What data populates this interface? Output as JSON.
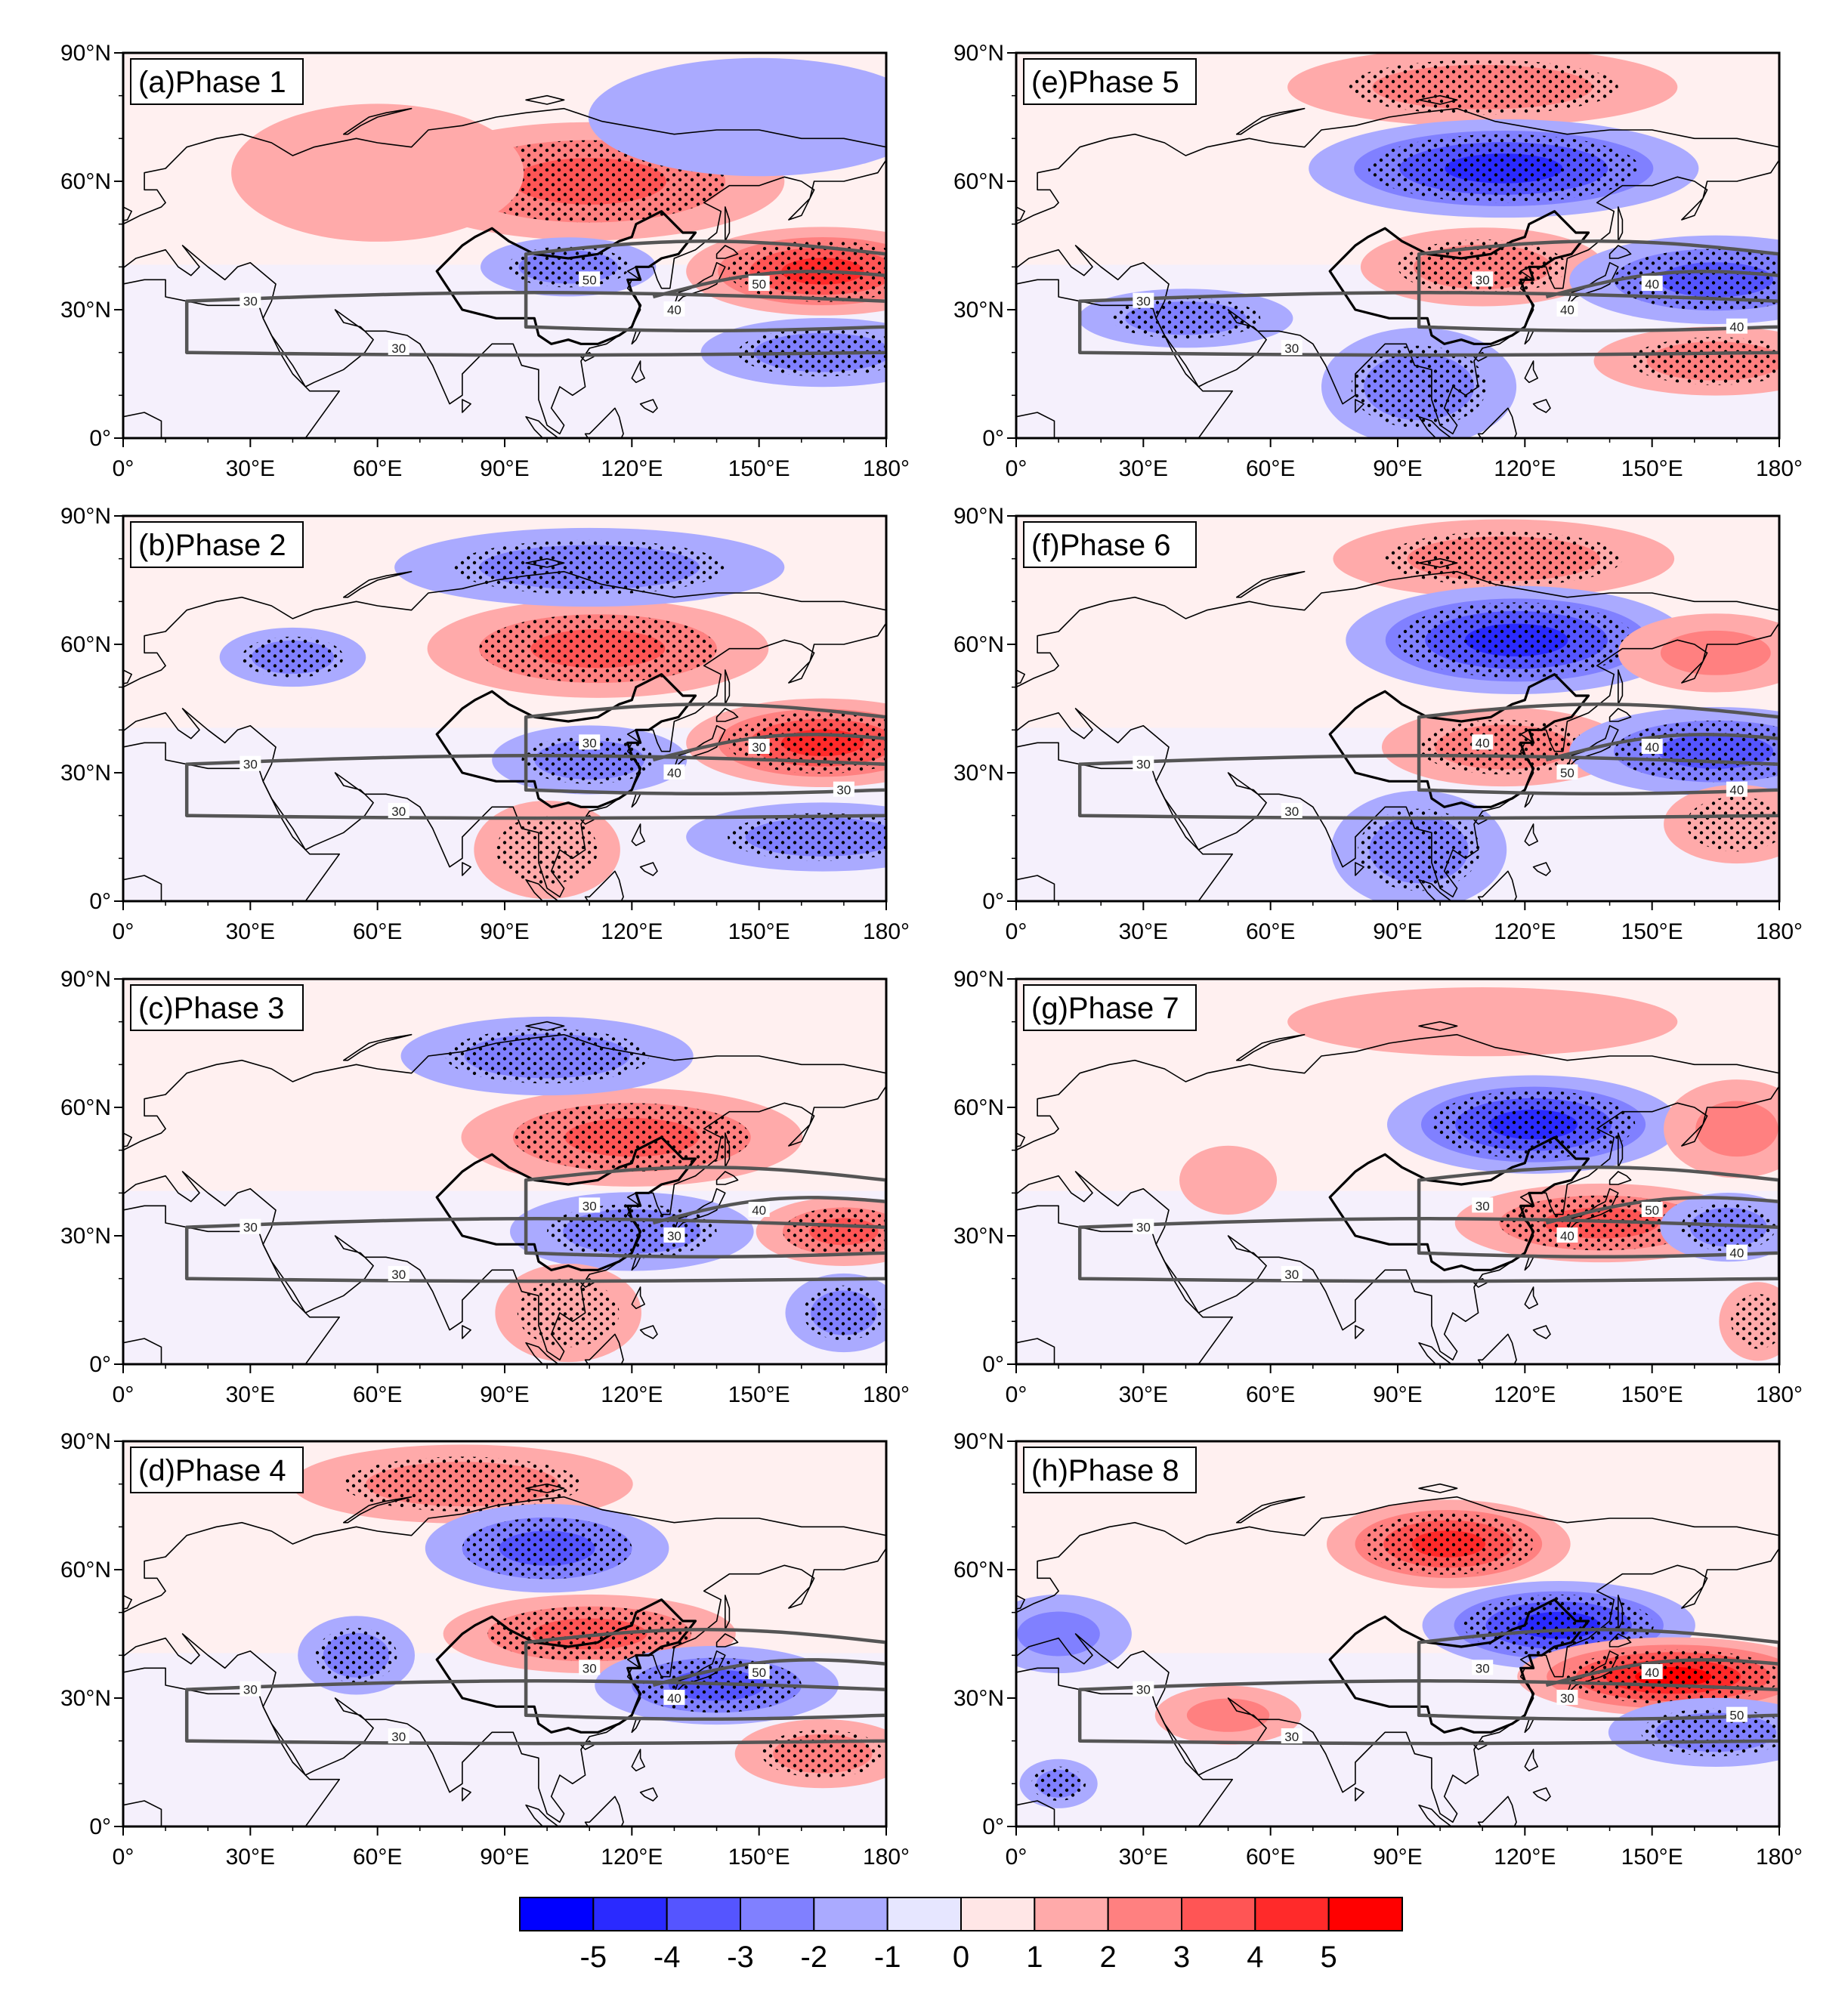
{
  "figure": {
    "x_axis": {
      "ticks": [
        "0°",
        "30°E",
        "60°E",
        "90°E",
        "120°E",
        "150°E",
        "180°"
      ]
    },
    "y_axis": {
      "ticks": [
        "0°",
        "30°N",
        "60°N",
        "90°N"
      ]
    },
    "panels": [
      {
        "label": "(a)Phase 1",
        "jet_labels": [
          "30",
          "30",
          "50",
          "40",
          "50"
        ],
        "anomalies": [
          {
            "lon": 110,
            "lat": 60,
            "value": 3,
            "rx": 40,
            "ry": 12,
            "dots": true
          },
          {
            "lon": 165,
            "lat": 39,
            "value": 4,
            "rx": 28,
            "ry": 9,
            "dots": true
          },
          {
            "lon": 105,
            "lat": 40,
            "value": -2,
            "rx": 18,
            "ry": 6,
            "dots": true
          },
          {
            "lon": 165,
            "lat": 20,
            "value": -2,
            "rx": 25,
            "ry": 7,
            "dots": true
          },
          {
            "lon": 60,
            "lat": 62,
            "value": 1,
            "rx": 30,
            "ry": 14,
            "dots": false
          },
          {
            "lon": 150,
            "lat": 75,
            "value": -1,
            "rx": 35,
            "ry": 12,
            "dots": false
          }
        ]
      },
      {
        "label": "(e)Phase 5",
        "jet_labels": [
          "30",
          "30",
          "30",
          "40",
          "40",
          "40"
        ],
        "anomalies": [
          {
            "lon": 110,
            "lat": 82,
            "value": 2,
            "rx": 40,
            "ry": 8,
            "dots": true
          },
          {
            "lon": 115,
            "lat": 63,
            "value": -4,
            "rx": 40,
            "ry": 10,
            "dots": true
          },
          {
            "lon": 110,
            "lat": 40,
            "value": 2,
            "rx": 25,
            "ry": 8,
            "dots": true
          },
          {
            "lon": 165,
            "lat": 37,
            "value": -3,
            "rx": 30,
            "ry": 9,
            "dots": true
          },
          {
            "lon": 165,
            "lat": 18,
            "value": 2,
            "rx": 25,
            "ry": 7,
            "dots": true
          },
          {
            "lon": 95,
            "lat": 12,
            "value": -2,
            "rx": 20,
            "ry": 12,
            "dots": true
          },
          {
            "lon": 40,
            "lat": 28,
            "value": -2,
            "rx": 22,
            "ry": 6,
            "dots": true
          }
        ]
      },
      {
        "label": "(b)Phase 2",
        "jet_labels": [
          "30",
          "30",
          "30",
          "40",
          "30",
          "30"
        ],
        "anomalies": [
          {
            "lon": 112,
            "lat": 59,
            "value": 3,
            "rx": 35,
            "ry": 10,
            "dots": true
          },
          {
            "lon": 110,
            "lat": 78,
            "value": -2,
            "rx": 40,
            "ry": 8,
            "dots": true
          },
          {
            "lon": 165,
            "lat": 37,
            "value": 4,
            "rx": 28,
            "ry": 9,
            "dots": true
          },
          {
            "lon": 110,
            "lat": 33,
            "value": -2,
            "rx": 20,
            "ry": 7,
            "dots": true
          },
          {
            "lon": 165,
            "lat": 15,
            "value": -2,
            "rx": 28,
            "ry": 7,
            "dots": true
          },
          {
            "lon": 40,
            "lat": 57,
            "value": -2,
            "rx": 15,
            "ry": 6,
            "dots": true
          },
          {
            "lon": 100,
            "lat": 12,
            "value": 1,
            "rx": 15,
            "ry": 10,
            "dots": true
          }
        ]
      },
      {
        "label": "(f)Phase 6",
        "jet_labels": [
          "30",
          "30",
          "40",
          "50",
          "40",
          "40"
        ],
        "anomalies": [
          {
            "lon": 115,
            "lat": 80,
            "value": 2,
            "rx": 35,
            "ry": 8,
            "dots": true
          },
          {
            "lon": 118,
            "lat": 61,
            "value": -4,
            "rx": 35,
            "ry": 11,
            "dots": true
          },
          {
            "lon": 115,
            "lat": 36,
            "value": 2,
            "rx": 25,
            "ry": 8,
            "dots": true
          },
          {
            "lon": 165,
            "lat": 35,
            "value": -3,
            "rx": 30,
            "ry": 9,
            "dots": true
          },
          {
            "lon": 165,
            "lat": 58,
            "value": 2,
            "rx": 20,
            "ry": 8,
            "dots": false
          },
          {
            "lon": 95,
            "lat": 12,
            "value": -2,
            "rx": 18,
            "ry": 12,
            "dots": true
          },
          {
            "lon": 170,
            "lat": 18,
            "value": 1,
            "rx": 15,
            "ry": 8,
            "dots": true
          }
        ]
      },
      {
        "label": "(c)Phase 3",
        "jet_labels": [
          "30",
          "30",
          "30",
          "30",
          "40"
        ],
        "anomalies": [
          {
            "lon": 120,
            "lat": 53,
            "value": 3,
            "rx": 35,
            "ry": 10,
            "dots": true
          },
          {
            "lon": 100,
            "lat": 72,
            "value": -2,
            "rx": 30,
            "ry": 8,
            "dots": true
          },
          {
            "lon": 120,
            "lat": 31,
            "value": -2,
            "rx": 25,
            "ry": 8,
            "dots": true
          },
          {
            "lon": 170,
            "lat": 31,
            "value": 3,
            "rx": 18,
            "ry": 7,
            "dots": true
          },
          {
            "lon": 170,
            "lat": 12,
            "value": -2,
            "rx": 12,
            "ry": 8,
            "dots": true
          },
          {
            "lon": 105,
            "lat": 12,
            "value": 1,
            "rx": 15,
            "ry": 10,
            "dots": true
          }
        ]
      },
      {
        "label": "(g)Phase 7",
        "jet_labels": [
          "30",
          "30",
          "30",
          "40",
          "50",
          "40"
        ],
        "anomalies": [
          {
            "lon": 122,
            "lat": 56,
            "value": -4,
            "rx": 30,
            "ry": 10,
            "dots": true
          },
          {
            "lon": 138,
            "lat": 33,
            "value": 3,
            "rx": 30,
            "ry": 8,
            "dots": true
          },
          {
            "lon": 168,
            "lat": 32,
            "value": -2,
            "rx": 14,
            "ry": 7,
            "dots": true
          },
          {
            "lon": 170,
            "lat": 55,
            "value": 2,
            "rx": 15,
            "ry": 10,
            "dots": false
          },
          {
            "lon": 110,
            "lat": 80,
            "value": 1,
            "rx": 40,
            "ry": 7,
            "dots": false
          },
          {
            "lon": 50,
            "lat": 43,
            "value": 1,
            "rx": 10,
            "ry": 7,
            "dots": false
          },
          {
            "lon": 175,
            "lat": 10,
            "value": 1,
            "rx": 8,
            "ry": 8,
            "dots": true
          }
        ]
      },
      {
        "label": "(d)Phase 4",
        "jet_labels": [
          "30",
          "30",
          "30",
          "40",
          "50"
        ],
        "anomalies": [
          {
            "lon": 80,
            "lat": 80,
            "value": 2,
            "rx": 35,
            "ry": 8,
            "dots": true
          },
          {
            "lon": 100,
            "lat": 65,
            "value": -3,
            "rx": 25,
            "ry": 9,
            "dots": true
          },
          {
            "lon": 110,
            "lat": 45,
            "value": 3,
            "rx": 30,
            "ry": 8,
            "dots": true
          },
          {
            "lon": 140,
            "lat": 33,
            "value": -3,
            "rx": 25,
            "ry": 8,
            "dots": true
          },
          {
            "lon": 165,
            "lat": 17,
            "value": 2,
            "rx": 18,
            "ry": 7,
            "dots": true
          },
          {
            "lon": 55,
            "lat": 40,
            "value": -2,
            "rx": 12,
            "ry": 8,
            "dots": true
          }
        ]
      },
      {
        "label": "(h)Phase 8",
        "jet_labels": [
          "30",
          "30",
          "30",
          "30",
          "40",
          "50"
        ],
        "anomalies": [
          {
            "lon": 102,
            "lat": 66,
            "value": 4,
            "rx": 25,
            "ry": 9,
            "dots": true
          },
          {
            "lon": 128,
            "lat": 47,
            "value": -4,
            "rx": 28,
            "ry": 9,
            "dots": true
          },
          {
            "lon": 155,
            "lat": 35,
            "value": 5,
            "rx": 32,
            "ry": 8,
            "dots": true
          },
          {
            "lon": 165,
            "lat": 22,
            "value": -2,
            "rx": 22,
            "ry": 7,
            "dots": true
          },
          {
            "lon": 10,
            "lat": 45,
            "value": -2,
            "rx": 15,
            "ry": 8,
            "dots": false
          },
          {
            "lon": 50,
            "lat": 26,
            "value": 2,
            "rx": 15,
            "ry": 6,
            "dots": false
          },
          {
            "lon": 10,
            "lat": 10,
            "value": -2,
            "rx": 8,
            "ry": 5,
            "dots": true
          }
        ]
      }
    ]
  },
  "colorbar": {
    "colors": [
      "#0000ff",
      "#2a2aff",
      "#5555ff",
      "#8080ff",
      "#aaaaff",
      "#e6e6ff",
      "#ffe6e6",
      "#ffaaaa",
      "#ff8080",
      "#ff5555",
      "#ff2a2a",
      "#ff0000"
    ],
    "labels": [
      "-5",
      "-4",
      "-3",
      "-2",
      "-1",
      "0",
      "1",
      "2",
      "3",
      "4",
      "5"
    ]
  }
}
